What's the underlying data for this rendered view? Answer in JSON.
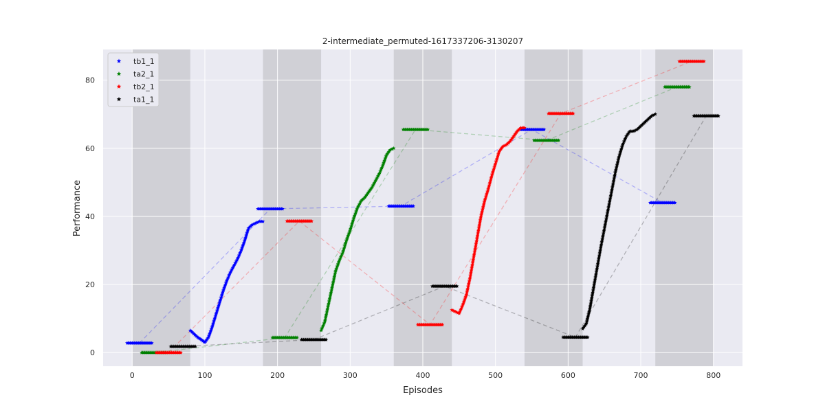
{
  "chart_data": {
    "type": "scatter",
    "title": "2-intermediate_permuted-1617337206-3130207",
    "xlabel": "Episodes",
    "ylabel": "Performance",
    "xlim": [
      -40,
      840
    ],
    "ylim": [
      -4,
      89
    ],
    "x_ticks": [
      0,
      100,
      200,
      300,
      400,
      500,
      600,
      700,
      800
    ],
    "y_ticks": [
      0,
      20,
      40,
      60,
      80
    ],
    "grid": true,
    "legend_position": "top-left",
    "background_color": "#eaeaf2",
    "shaded_regions": [
      [
        0,
        80
      ],
      [
        180,
        260
      ],
      [
        360,
        440
      ],
      [
        540,
        620
      ],
      [
        720,
        800
      ]
    ],
    "shaded_color": "#d0d0d6",
    "series": [
      {
        "name": "tb1_1",
        "color": "#0000ff",
        "eval_points": [
          [
            10,
            2.8
          ],
          [
            190,
            42.2
          ],
          [
            370,
            43.0
          ],
          [
            550,
            65.5
          ],
          [
            730,
            44.0
          ]
        ],
        "train_segments": [
          [
            [
              80,
              6.5
            ],
            [
              85,
              5.5
            ],
            [
              90,
              4.5
            ],
            [
              95,
              3.8
            ],
            [
              100,
              3.0
            ],
            [
              105,
              4.5
            ],
            [
              110,
              7.5
            ],
            [
              115,
              11.0
            ],
            [
              120,
              14.5
            ],
            [
              125,
              18.0
            ],
            [
              130,
              21.0
            ],
            [
              135,
              23.5
            ],
            [
              140,
              25.5
            ],
            [
              145,
              27.5
            ],
            [
              150,
              30.0
            ],
            [
              155,
              33.0
            ],
            [
              160,
              36.5
            ],
            [
              165,
              37.5
            ],
            [
              170,
              38.0
            ],
            [
              175,
              38.5
            ],
            [
              180,
              38.5
            ]
          ]
        ]
      },
      {
        "name": "ta2_1",
        "color": "#008000",
        "eval_points": [
          [
            30,
            0.0
          ],
          [
            210,
            4.4
          ],
          [
            390,
            65.5
          ],
          [
            570,
            62.3
          ],
          [
            750,
            78.0
          ]
        ],
        "train_segments": [
          [
            [
              260,
              6.5
            ],
            [
              265,
              9.0
            ],
            [
              270,
              14.0
            ],
            [
              275,
              19.0
            ],
            [
              280,
              24.0
            ],
            [
              285,
              27.0
            ],
            [
              290,
              29.5
            ],
            [
              295,
              33.0
            ],
            [
              300,
              36.0
            ],
            [
              305,
              39.5
            ],
            [
              310,
              42.5
            ],
            [
              315,
              44.5
            ],
            [
              320,
              45.5
            ],
            [
              325,
              47.0
            ],
            [
              330,
              48.5
            ],
            [
              335,
              50.5
            ],
            [
              340,
              52.5
            ],
            [
              345,
              55.0
            ],
            [
              350,
              58.0
            ],
            [
              355,
              59.5
            ],
            [
              360,
              60.0
            ]
          ]
        ]
      },
      {
        "name": "tb2_1",
        "color": "#ff0000",
        "eval_points": [
          [
            50,
            0.0
          ],
          [
            230,
            38.6
          ],
          [
            410,
            8.2
          ],
          [
            590,
            70.2
          ],
          [
            770,
            85.5
          ]
        ],
        "train_segments": [
          [
            [
              440,
              12.5
            ],
            [
              445,
              12.0
            ],
            [
              450,
              11.5
            ],
            [
              455,
              14.0
            ],
            [
              460,
              17.0
            ],
            [
              465,
              22.0
            ],
            [
              470,
              28.0
            ],
            [
              475,
              34.0
            ],
            [
              480,
              40.0
            ],
            [
              485,
              44.5
            ],
            [
              490,
              48.0
            ],
            [
              495,
              52.0
            ],
            [
              500,
              55.5
            ],
            [
              505,
              59.0
            ],
            [
              510,
              60.5
            ],
            [
              515,
              61.0
            ],
            [
              520,
              62.0
            ],
            [
              525,
              63.5
            ],
            [
              530,
              65.0
            ],
            [
              535,
              66.0
            ],
            [
              540,
              66.0
            ]
          ]
        ]
      },
      {
        "name": "ta1_1",
        "color": "#000000",
        "eval_points": [
          [
            70,
            1.8
          ],
          [
            250,
            3.8
          ],
          [
            430,
            19.5
          ],
          [
            610,
            4.5
          ],
          [
            790,
            69.5
          ]
        ],
        "train_segments": [
          [
            [
              620,
              7.0
            ],
            [
              625,
              8.5
            ],
            [
              630,
              13.0
            ],
            [
              635,
              19.0
            ],
            [
              640,
              25.0
            ],
            [
              645,
              31.0
            ],
            [
              650,
              36.5
            ],
            [
              655,
              42.0
            ],
            [
              660,
              47.5
            ],
            [
              665,
              53.0
            ],
            [
              670,
              57.5
            ],
            [
              675,
              61.0
            ],
            [
              680,
              63.5
            ],
            [
              685,
              65.0
            ],
            [
              690,
              65.0
            ],
            [
              695,
              65.5
            ],
            [
              700,
              66.5
            ],
            [
              705,
              67.5
            ],
            [
              710,
              68.5
            ],
            [
              715,
              69.5
            ],
            [
              720,
              70.0
            ]
          ]
        ]
      }
    ]
  }
}
